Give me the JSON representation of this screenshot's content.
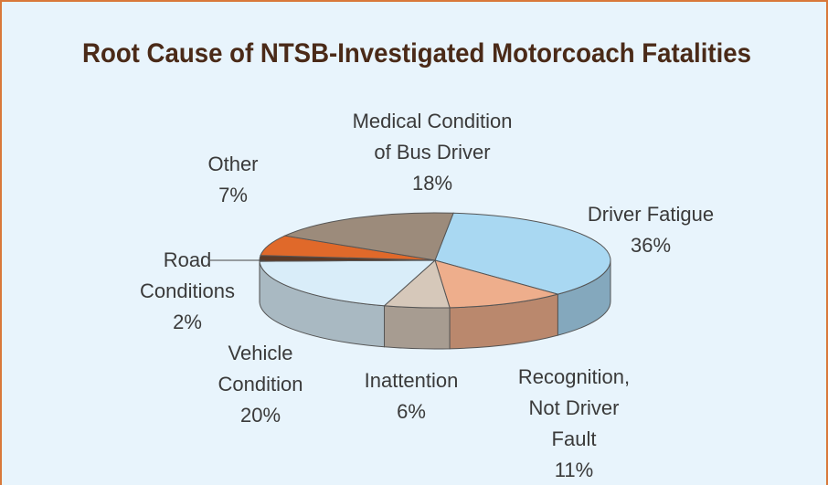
{
  "chart_data": {
    "type": "pie3d",
    "title": "Root Cause of NTSB-Investigated Motorcoach Fatalities",
    "categories": [
      "Driver Fatigue",
      "Recognition, Not Driver Fault",
      "Inattention",
      "Vehicle Condition",
      "Road Conditions",
      "Other",
      "Medical Condition of Bus Driver"
    ],
    "values": [
      36,
      11,
      6,
      20,
      2,
      7,
      18
    ],
    "value_labels": [
      "36%",
      "11%",
      "6%",
      "20%",
      "2%",
      "7%",
      "18%"
    ],
    "colors": [
      "#a9d8f2",
      "#eeae8c",
      "#d6c8ba",
      "#d9edf9",
      "#5b3a27",
      "#e0692a",
      "#9c8b7b"
    ]
  }
}
